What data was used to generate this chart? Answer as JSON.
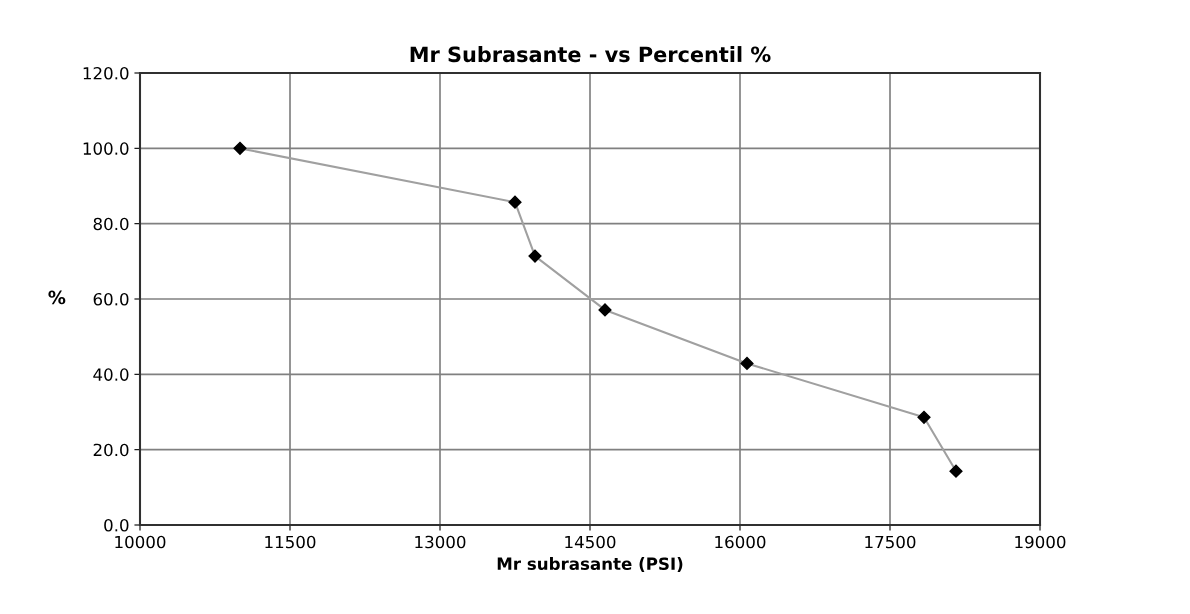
{
  "chart_data": {
    "type": "line",
    "title": "Mr Subrasante - vs Percentil %",
    "xlabel": "Mr subrasante (PSI)",
    "ylabel": "%",
    "x": [
      11000,
      13750,
      13950,
      14650,
      16070,
      17840,
      18160
    ],
    "series": [
      {
        "color": "#a0a0a0",
        "values": [
          100.0,
          85.7,
          71.4,
          57.1,
          42.9,
          28.6,
          14.3
        ]
      }
    ],
    "marker": "diamond",
    "line_style": "solid",
    "grid": true,
    "xlim": [
      10000,
      19000
    ],
    "xticks": [
      10000,
      11500,
      13000,
      14500,
      16000,
      17500,
      19000
    ],
    "ylim": [
      0,
      120
    ],
    "yticks": [
      {
        "value": 0,
        "label": "0.0"
      },
      {
        "value": 20,
        "label": "20.0"
      },
      {
        "value": 40,
        "label": "40.0"
      },
      {
        "value": 60,
        "label": "60.0"
      },
      {
        "value": 80,
        "label": "80.0"
      },
      {
        "value": 100,
        "label": "100.0"
      },
      {
        "value": 120,
        "label": "120.0"
      }
    ]
  }
}
